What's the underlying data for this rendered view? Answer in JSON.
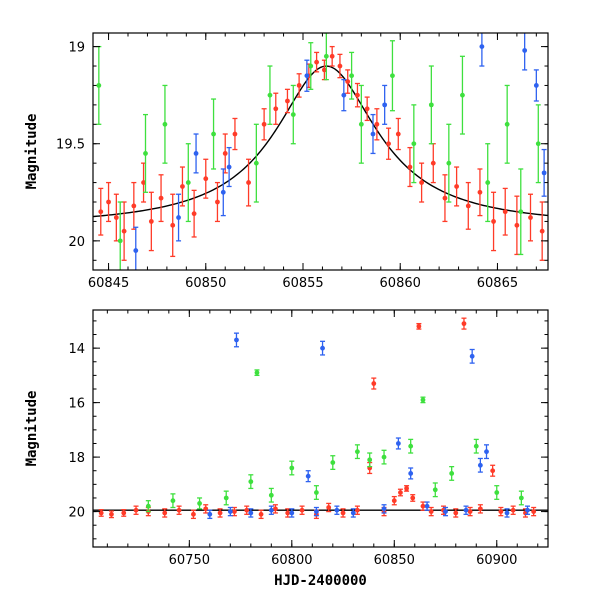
{
  "chart_data": [
    {
      "type": "scatter",
      "title": "",
      "xlabel": "",
      "ylabel": "Magnitude",
      "xlim": [
        60844.2,
        60867.6
      ],
      "ylim": [
        20.15,
        18.93
      ],
      "y_inverted": true,
      "xticks": [
        60845,
        60850,
        60855,
        60860,
        60865
      ],
      "yticks": [
        19,
        19.5,
        20
      ],
      "minor_x_step": 1,
      "minor_y_step": 0.1,
      "model_curve": {
        "color": "#000000",
        "peak_x": 60856.2,
        "peak_y": 19.1,
        "baseline_y": 19.93,
        "width": 3.2
      },
      "series": [
        {
          "color": "#ff3b28",
          "points": [
            [
              60844.6,
              19.85,
              0.12
            ],
            [
              60845.0,
              19.8,
              0.1
            ],
            [
              60845.4,
              19.88,
              0.12
            ],
            [
              60845.8,
              19.95,
              0.15
            ],
            [
              60846.3,
              19.82,
              0.12
            ],
            [
              60846.8,
              19.7,
              0.1
            ],
            [
              60847.2,
              19.9,
              0.15
            ],
            [
              60847.7,
              19.78,
              0.12
            ],
            [
              60848.3,
              19.92,
              0.16
            ],
            [
              60848.8,
              19.72,
              0.1
            ],
            [
              60849.4,
              19.86,
              0.12
            ],
            [
              60850.0,
              19.68,
              0.1
            ],
            [
              60850.6,
              19.8,
              0.1
            ],
            [
              60851.0,
              19.55,
              0.1
            ],
            [
              60851.5,
              19.45,
              0.08
            ],
            [
              60852.2,
              19.7,
              0.12
            ],
            [
              60853.0,
              19.4,
              0.08
            ],
            [
              60853.6,
              19.32,
              0.08
            ],
            [
              60854.2,
              19.28,
              0.06
            ],
            [
              60854.8,
              19.2,
              0.06
            ],
            [
              60855.3,
              19.15,
              0.06
            ],
            [
              60855.7,
              19.08,
              0.05
            ],
            [
              60856.1,
              19.12,
              0.05
            ],
            [
              60856.5,
              19.05,
              0.05
            ],
            [
              60856.9,
              19.1,
              0.06
            ],
            [
              60857.3,
              19.18,
              0.06
            ],
            [
              60857.8,
              19.25,
              0.06
            ],
            [
              60858.3,
              19.32,
              0.06
            ],
            [
              60858.8,
              19.4,
              0.08
            ],
            [
              60859.4,
              19.5,
              0.08
            ],
            [
              60859.9,
              19.45,
              0.08
            ],
            [
              60860.5,
              19.62,
              0.1
            ],
            [
              60861.1,
              19.7,
              0.1
            ],
            [
              60861.7,
              19.6,
              0.1
            ],
            [
              60862.3,
              19.78,
              0.12
            ],
            [
              60862.9,
              19.72,
              0.1
            ],
            [
              60863.5,
              19.82,
              0.12
            ],
            [
              60864.1,
              19.75,
              0.12
            ],
            [
              60864.8,
              19.9,
              0.15
            ],
            [
              60865.4,
              19.85,
              0.12
            ],
            [
              60866.0,
              19.92,
              0.15
            ],
            [
              60866.7,
              19.88,
              0.12
            ],
            [
              60867.3,
              19.95,
              0.15
            ]
          ]
        },
        {
          "color": "#2e62f0",
          "points": [
            [
              60846.4,
              20.05,
              0.12
            ],
            [
              60848.6,
              19.88,
              0.12
            ],
            [
              60849.5,
              19.55,
              0.1
            ],
            [
              60850.9,
              19.75,
              0.12
            ],
            [
              60851.2,
              19.62,
              0.1
            ],
            [
              60855.2,
              19.15,
              0.08
            ],
            [
              60857.1,
              19.25,
              0.08
            ],
            [
              60858.6,
              19.45,
              0.1
            ],
            [
              60859.2,
              19.3,
              0.1
            ],
            [
              60864.2,
              19.0,
              0.1
            ],
            [
              60866.4,
              19.02,
              0.1
            ],
            [
              60867.0,
              19.2,
              0.08
            ],
            [
              60867.4,
              19.65,
              0.12
            ]
          ]
        },
        {
          "color": "#3ee03e",
          "points": [
            [
              60844.5,
              19.2,
              0.2
            ],
            [
              60845.6,
              20.0,
              0.2
            ],
            [
              60846.9,
              19.55,
              0.2
            ],
            [
              60847.9,
              19.4,
              0.2
            ],
            [
              60849.1,
              19.7,
              0.2
            ],
            [
              60850.4,
              19.45,
              0.18
            ],
            [
              60852.6,
              19.6,
              0.2
            ],
            [
              60853.3,
              19.25,
              0.15
            ],
            [
              60854.5,
              19.35,
              0.15
            ],
            [
              60855.4,
              19.1,
              0.12
            ],
            [
              60856.2,
              19.05,
              0.12
            ],
            [
              60857.5,
              19.15,
              0.12
            ],
            [
              60858.0,
              19.4,
              0.2
            ],
            [
              60859.6,
              19.15,
              0.18
            ],
            [
              60860.7,
              19.5,
              0.2
            ],
            [
              60861.6,
              19.3,
              0.2
            ],
            [
              60862.5,
              19.6,
              0.2
            ],
            [
              60863.2,
              19.25,
              0.2
            ],
            [
              60864.5,
              19.7,
              0.2
            ],
            [
              60865.5,
              19.4,
              0.2
            ],
            [
              60866.2,
              19.85,
              0.22
            ],
            [
              60867.1,
              19.5,
              0.2
            ]
          ]
        }
      ]
    },
    {
      "type": "scatter",
      "title": "",
      "xlabel": "HJD-2400000",
      "ylabel": "Magnitude",
      "xlim": [
        60703,
        60925
      ],
      "ylim": [
        21.3,
        12.6
      ],
      "y_inverted": true,
      "xticks": [
        60750,
        60800,
        60850,
        60900
      ],
      "yticks": [
        14,
        16,
        18,
        20
      ],
      "minor_x_step": 10,
      "minor_y_step": 0.5,
      "model_curve": {
        "color": "#000000",
        "baseline_y": 19.95
      },
      "series": [
        {
          "color": "#ff3b28",
          "points": [
            [
              60707,
              20.05,
              0.12
            ],
            [
              60712,
              20.1,
              0.12
            ],
            [
              60718,
              20.05,
              0.12
            ],
            [
              60724,
              19.95,
              0.15
            ],
            [
              60730,
              20.0,
              0.15
            ],
            [
              60738,
              20.05,
              0.15
            ],
            [
              60745,
              19.95,
              0.15
            ],
            [
              60752,
              20.1,
              0.15
            ],
            [
              60758,
              19.9,
              0.15
            ],
            [
              60765,
              20.05,
              0.15
            ],
            [
              60772,
              20.0,
              0.15
            ],
            [
              60778,
              19.95,
              0.15
            ],
            [
              60785,
              20.1,
              0.15
            ],
            [
              60792,
              19.9,
              0.15
            ],
            [
              60798,
              20.05,
              0.15
            ],
            [
              60805,
              19.95,
              0.15
            ],
            [
              60812,
              20.1,
              0.15
            ],
            [
              60818,
              19.85,
              0.15
            ],
            [
              60825,
              20.05,
              0.15
            ],
            [
              60832,
              19.95,
              0.15
            ],
            [
              60838,
              18.4,
              0.2
            ],
            [
              60840,
              15.3,
              0.2
            ],
            [
              60845,
              20.0,
              0.15
            ],
            [
              60850,
              19.6,
              0.15
            ],
            [
              60853,
              19.3,
              0.12
            ],
            [
              60856,
              19.15,
              0.1
            ],
            [
              60859,
              19.5,
              0.12
            ],
            [
              60862,
              13.2,
              0.1
            ],
            [
              60864,
              19.8,
              0.15
            ],
            [
              60868,
              20.0,
              0.15
            ],
            [
              60874,
              19.95,
              0.15
            ],
            [
              60880,
              20.05,
              0.15
            ],
            [
              60884,
              13.1,
              0.2
            ],
            [
              60887,
              20.0,
              0.15
            ],
            [
              60892,
              19.9,
              0.15
            ],
            [
              60898,
              18.5,
              0.2
            ],
            [
              60902,
              20.0,
              0.15
            ],
            [
              60908,
              19.95,
              0.15
            ],
            [
              60914,
              20.05,
              0.15
            ],
            [
              60918,
              20.0,
              0.15
            ]
          ]
        },
        {
          "color": "#2e62f0",
          "points": [
            [
              60760,
              20.1,
              0.15
            ],
            [
              60770,
              20.0,
              0.15
            ],
            [
              60773,
              13.7,
              0.25
            ],
            [
              60780,
              20.05,
              0.15
            ],
            [
              60790,
              19.95,
              0.15
            ],
            [
              60800,
              20.05,
              0.15
            ],
            [
              60808,
              18.7,
              0.2
            ],
            [
              60812,
              20.0,
              0.15
            ],
            [
              60815,
              14.0,
              0.25
            ],
            [
              60822,
              19.95,
              0.15
            ],
            [
              60830,
              20.05,
              0.15
            ],
            [
              60845,
              19.9,
              0.15
            ],
            [
              60852,
              17.5,
              0.2
            ],
            [
              60858,
              18.6,
              0.2
            ],
            [
              60866,
              19.8,
              0.15
            ],
            [
              60875,
              20.0,
              0.15
            ],
            [
              60885,
              19.95,
              0.15
            ],
            [
              60888,
              14.3,
              0.25
            ],
            [
              60892,
              18.3,
              0.25
            ],
            [
              60895,
              17.8,
              0.25
            ],
            [
              60905,
              20.05,
              0.15
            ],
            [
              60915,
              19.95,
              0.15
            ]
          ]
        },
        {
          "color": "#3ee03e",
          "points": [
            [
              60730,
              19.8,
              0.2
            ],
            [
              60742,
              19.6,
              0.25
            ],
            [
              60755,
              19.7,
              0.2
            ],
            [
              60768,
              19.5,
              0.25
            ],
            [
              60780,
              18.9,
              0.25
            ],
            [
              60783,
              14.9,
              0.1
            ],
            [
              60790,
              19.4,
              0.25
            ],
            [
              60800,
              18.4,
              0.25
            ],
            [
              60812,
              19.3,
              0.25
            ],
            [
              60820,
              18.2,
              0.25
            ],
            [
              60832,
              17.8,
              0.25
            ],
            [
              60838,
              18.1,
              0.25
            ],
            [
              60845,
              18.0,
              0.25
            ],
            [
              60858,
              17.6,
              0.25
            ],
            [
              60864,
              15.9,
              0.1
            ],
            [
              60870,
              19.2,
              0.25
            ],
            [
              60878,
              18.6,
              0.25
            ],
            [
              60890,
              17.6,
              0.25
            ],
            [
              60900,
              19.3,
              0.25
            ],
            [
              60912,
              19.5,
              0.25
            ]
          ]
        }
      ]
    }
  ]
}
